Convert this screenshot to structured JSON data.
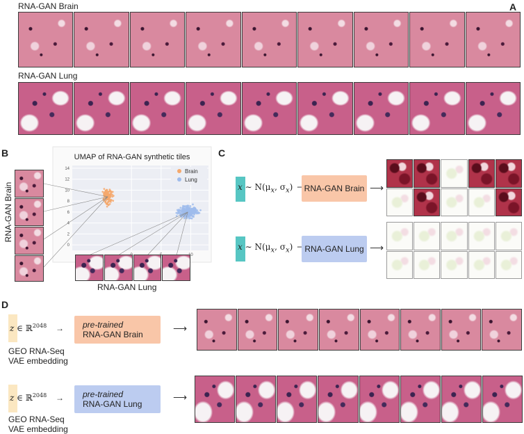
{
  "panelA": {
    "label": "A",
    "brain_title": "RNA-GAN Brain",
    "lung_title": "RNA-GAN Lung",
    "tiles_per_row": 9
  },
  "panelB": {
    "label": "B",
    "left_label": "RNA-GAN Brain",
    "bottom_label": "RNA-GAN Lung",
    "chart_data": {
      "type": "scatter",
      "title": "UMAP of RNA-GAN synthetic tiles",
      "xlabel": "",
      "ylabel": "",
      "x_ticks": [
        0,
        5,
        10
      ],
      "y_ticks": [
        0,
        2,
        4,
        6,
        8,
        10,
        12,
        14
      ],
      "xlim": [
        -10,
        13
      ],
      "ylim": [
        -1,
        14.5
      ],
      "legend_position": "top-right",
      "grid": true,
      "series": [
        {
          "name": "Brain",
          "color": "#f5a86c",
          "center": [
            -4,
            8.8
          ],
          "spread": [
            0.6,
            1.1
          ]
        },
        {
          "name": "Lung",
          "color": "#9fbcec",
          "center": [
            9.5,
            6.0
          ],
          "spread": [
            1.4,
            0.9
          ]
        }
      ]
    }
  },
  "panelC": {
    "label": "C",
    "formula_prefix": "x",
    "formula_body": "∼ N(μ",
    "formula_sub1": "x",
    "formula_mid": ", σ",
    "formula_sub2": "x",
    "formula_end": ")",
    "brain_box": "RNA-GAN Brain",
    "lung_box": "RNA-GAN Lung",
    "arrow": "⟶"
  },
  "panelD": {
    "label": "D",
    "z_symbol": "z",
    "z_set": "∈ ℝ",
    "z_dim": "2048",
    "embed_label_1": "GEO RNA-Seq",
    "embed_label_2": "VAE embedding",
    "pretrained": "pre-trained",
    "brain_box": "RNA-GAN Brain",
    "lung_box": "RNA-GAN Lung",
    "arrow": "⟶",
    "tiles_per_row": 8
  },
  "colors": {
    "brain_box": "#f9c6a8",
    "lung_box": "#bcccf0",
    "teal": "#57c6c3",
    "z_bar": "#fbe7c1"
  }
}
